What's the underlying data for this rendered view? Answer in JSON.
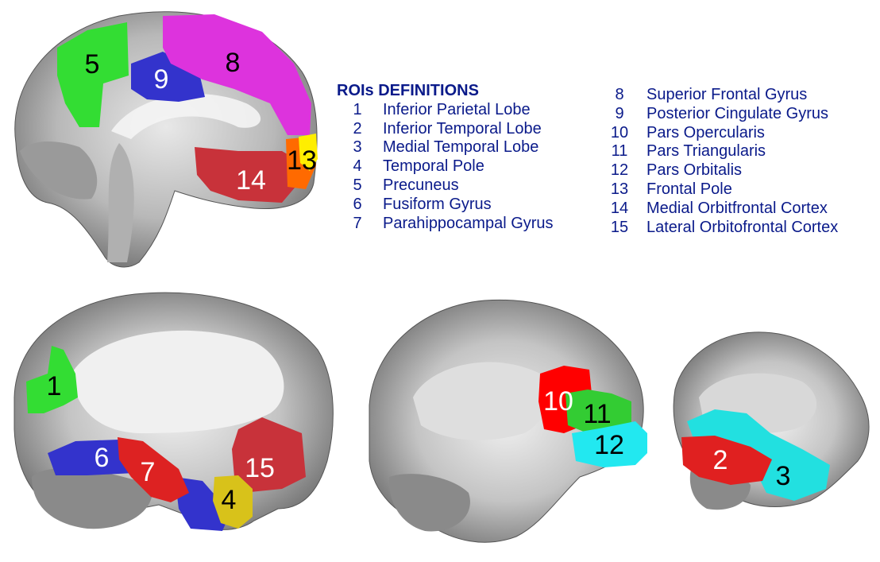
{
  "legend": {
    "title": "ROIs DEFINITIONS",
    "left": [
      {
        "num": "1",
        "name": "Inferior Parietal Lobe"
      },
      {
        "num": "2",
        "name": "Inferior Temporal Lobe"
      },
      {
        "num": "3",
        "name": "Medial Temporal Lobe"
      },
      {
        "num": "4",
        "name": "Temporal Pole"
      },
      {
        "num": "5",
        "name": "Precuneus"
      },
      {
        "num": "6",
        "name": "Fusiform Gyrus"
      },
      {
        "num": "7",
        "name": "Parahippocampal Gyrus"
      }
    ],
    "right": [
      {
        "num": "8",
        "name": "Superior Frontal Gyrus"
      },
      {
        "num": "9",
        "name": "Posterior Cingulate Gyrus"
      },
      {
        "num": "10",
        "name": "Pars Opercularis"
      },
      {
        "num": "11",
        "name": "Pars Triangularis"
      },
      {
        "num": "12",
        "name": "Pars Orbitalis"
      },
      {
        "num": "13",
        "name": "Frontal Pole"
      },
      {
        "num": "14",
        "name": "Medial Orbitfrontal Cortex"
      },
      {
        "num": "15",
        "name": "Lateral Orbitofrontal Cortex"
      }
    ]
  },
  "rois": {
    "r1": "1",
    "r2": "2",
    "r3": "3",
    "r4": "4",
    "r5": "5",
    "r6": "6",
    "r7": "7",
    "r8": "8",
    "r9": "9",
    "r10": "10",
    "r11": "11",
    "r12": "12",
    "r13": "13",
    "r14": "14",
    "r15": "15"
  },
  "colors": {
    "legend_text": "#0a1a8a",
    "green": "#33dd33",
    "blue": "#3333cc",
    "magenta": "#dd33dd",
    "red": "#dd2222",
    "dark_red": "#c8323a",
    "orange": "#ff6a00",
    "yellow": "#ffee00",
    "cyan": "#22e0e0",
    "mustard": "#d8c21a"
  }
}
